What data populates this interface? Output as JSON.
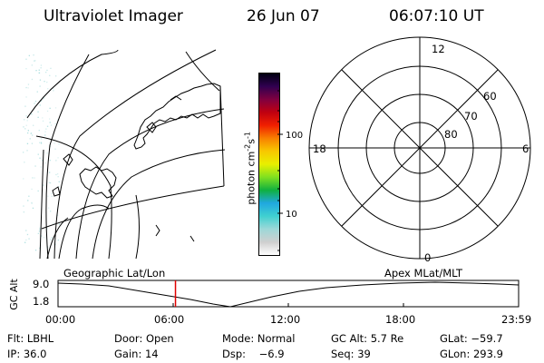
{
  "header": {
    "title": "Ultraviolet Imager",
    "date": "26 Jun 07",
    "time": "06:07:10 UT"
  },
  "colorbar": {
    "unit_parts": [
      "photon cm",
      "-2",
      "s",
      "-1"
    ],
    "ticks": [
      {
        "label": "100",
        "value": 100
      },
      {
        "label": "10",
        "value": 10
      }
    ],
    "colors": [
      "#ffffff",
      "#cfcfcf",
      "#9dd8d8",
      "#40d0d0",
      "#20a8e0",
      "#10b040",
      "#80e020",
      "#e8f000",
      "#f8c800",
      "#f88000",
      "#f02000",
      "#c00010",
      "#800040",
      "#300050",
      "#000010"
    ]
  },
  "polar_plot": {
    "mlt_labels": [
      {
        "label": "12",
        "angle": 90
      },
      {
        "label": "18",
        "angle": 180
      },
      {
        "label": "6",
        "angle": 0
      },
      {
        "label": "0",
        "angle": 270
      }
    ],
    "mlat_labels": [
      "60",
      "70",
      "80"
    ]
  },
  "timeline": {
    "left_label": "Geographic Lat/Lon",
    "right_label": "Apex  MLat/MLT",
    "axis_title": "GC Alt",
    "y_ticks": [
      "9.0",
      "1.8"
    ],
    "x_ticks": [
      "00:00",
      "06:00",
      "12:00",
      "18:00",
      "23:59"
    ],
    "current_time_hours": 6.12
  },
  "info": {
    "flt": "Flt: LBHL",
    "door": "Door: Open",
    "mode": "Mode: Normal",
    "gc_alt": "GC Alt: 5.7 Re",
    "glat": "GLat: −59.7",
    "ip": "IP: 36.0",
    "gain": "Gain: 14",
    "dsp": "Dsp:    −6.9",
    "seq": "Seq: 39",
    "glon": "GLon: 293.9"
  },
  "colors": {
    "marker": "#e00000",
    "accent": "#000000"
  }
}
